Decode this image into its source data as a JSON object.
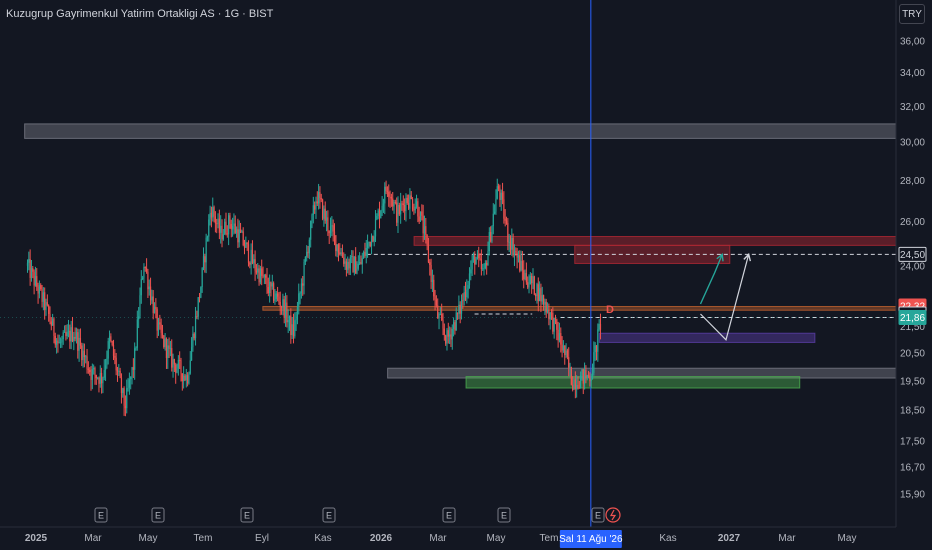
{
  "header": {
    "title": "Kuzugrup Gayrimenkul Yatirim Ortakligi AS · 1G · BIST",
    "currency": "TRY"
  },
  "colors": {
    "background": "#131722",
    "up_candle": "#26a69a",
    "down_candle": "#ef5350",
    "crosshair": "#2962ff",
    "axis_text": "#b2b5be"
  },
  "chart_data": {
    "type": "candlestick",
    "title": "Kuzugrup Gayrimenkul Yatirim Ortakligi AS · 1G · BIST",
    "y_scale": "log",
    "ylim": [
      15.2,
      37.0
    ],
    "y_ticks": [
      "36,00",
      "34,00",
      "32,00",
      "30,00",
      "28,00",
      "26,00",
      "24,00",
      "21,50",
      "20,50",
      "19,50",
      "18,50",
      "17,50",
      "16,70",
      "15,90"
    ],
    "x_ticks": [
      "2025",
      "Mar",
      "May",
      "Tem",
      "Eyl",
      "Kas",
      "2026",
      "Mar",
      "May",
      "Tem",
      "Kas",
      "2027",
      "Mar",
      "May"
    ],
    "price_labels": [
      {
        "text": "24,50",
        "value": 24.5,
        "style": "outline"
      },
      {
        "text": "22,32",
        "value": 22.32,
        "style": "red"
      },
      {
        "text": "22,00",
        "value": 22.0,
        "style": "outline"
      },
      {
        "text": "21,86",
        "value": 21.86,
        "style": "green"
      }
    ],
    "crosshair_date_label": "Sal 11 Ağu '26",
    "event_markers": [
      "E",
      "E",
      "E",
      "E",
      "E",
      "E",
      "E"
    ],
    "price_path": [
      [
        "2024-12-23",
        24.0
      ],
      [
        "2025-01-10",
        22.4
      ],
      [
        "2025-01-25",
        20.8
      ],
      [
        "2025-02-10",
        21.3
      ],
      [
        "2025-02-28",
        19.8
      ],
      [
        "2025-03-12",
        19.6
      ],
      [
        "2025-03-20",
        21.0
      ],
      [
        "2025-04-05",
        18.6
      ],
      [
        "2025-04-15",
        20.2
      ],
      [
        "2025-04-25",
        24.2
      ],
      [
        "2025-05-10",
        21.4
      ],
      [
        "2025-05-25",
        20.2
      ],
      [
        "2025-06-10",
        19.6
      ],
      [
        "2025-06-25",
        23.3
      ],
      [
        "2025-07-05",
        26.7
      ],
      [
        "2025-07-15",
        25.4
      ],
      [
        "2025-07-25",
        26.0
      ],
      [
        "2025-08-05",
        25.3
      ],
      [
        "2025-08-20",
        24.0
      ],
      [
        "2025-09-05",
        23.0
      ],
      [
        "2025-09-20",
        22.3
      ],
      [
        "2025-09-30",
        21.2
      ],
      [
        "2025-10-10",
        23.4
      ],
      [
        "2025-10-25",
        27.3
      ],
      [
        "2025-11-05",
        25.9
      ],
      [
        "2025-11-15",
        25.0
      ],
      [
        "2025-11-25",
        24.1
      ],
      [
        "2025-12-10",
        24.0
      ],
      [
        "2025-12-25",
        25.7
      ],
      [
        "2026-01-08",
        27.8
      ],
      [
        "2026-01-18",
        26.3
      ],
      [
        "2026-01-28",
        27.1
      ],
      [
        "2026-02-08",
        26.8
      ],
      [
        "2026-02-15",
        25.6
      ],
      [
        "2026-02-20",
        24.4
      ],
      [
        "2026-03-01",
        22.0
      ],
      [
        "2026-03-12",
        21.0
      ],
      [
        "2026-03-25",
        22.1
      ],
      [
        "2026-04-10",
        24.4
      ],
      [
        "2026-04-20",
        23.6
      ],
      [
        "2026-05-05",
        27.7
      ],
      [
        "2026-05-15",
        25.4
      ],
      [
        "2026-05-22",
        24.7
      ],
      [
        "2026-06-01",
        23.6
      ],
      [
        "2026-06-15",
        23.0
      ],
      [
        "2026-06-25",
        22.3
      ],
      [
        "2026-07-05",
        21.4
      ],
      [
        "2026-07-15",
        20.4
      ],
      [
        "2026-07-22",
        19.5
      ],
      [
        "2026-08-01",
        19.6
      ],
      [
        "2026-08-11",
        19.7
      ],
      [
        "2026-08-18",
        21.0
      ],
      [
        "2026-08-22",
        21.8
      ]
    ],
    "zones": [
      {
        "from": "2024-12-20",
        "to": "2027-07-10",
        "low": 30.2,
        "high": 31.0,
        "color": "#787b86"
      },
      {
        "from": "2026-02-05",
        "to": "2027-07-10",
        "low": 24.9,
        "high": 25.3,
        "color": "#b22833"
      },
      {
        "from": "2026-07-25",
        "to": "2027-01-05",
        "low": 24.1,
        "high": 24.9,
        "color": "#b22833"
      },
      {
        "from": "2025-08-29",
        "to": "2027-07-10",
        "low": 22.15,
        "high": 22.3,
        "color": "#c0622e"
      },
      {
        "from": "2026-08-20",
        "to": "2027-04-05",
        "low": 20.9,
        "high": 21.25,
        "color": "#5b3fa8"
      },
      {
        "from": "2026-01-08",
        "to": "2027-07-10",
        "low": 19.6,
        "high": 19.95,
        "color": "#787b86"
      },
      {
        "from": "2026-04-01",
        "to": "2027-03-20",
        "low": 19.25,
        "high": 19.65,
        "color": "#4caf50"
      }
    ],
    "horizontal_lines": [
      {
        "value": 24.5,
        "from": "2025-12-17"
      },
      {
        "value": 22.0,
        "from": "2026-04-10",
        "to": "2026-06-10"
      },
      {
        "value": 21.86,
        "from": "2026-07-10"
      }
    ],
    "projection_green": [
      [
        "2026-12-05",
        22.4
      ],
      [
        "2026-12-20",
        23.7
      ],
      [
        "2026-12-28",
        24.5
      ]
    ],
    "projection_white": [
      [
        "2026-12-05",
        22.0
      ],
      [
        "2027-01-01",
        21.0
      ],
      [
        "2027-01-25",
        24.5
      ]
    ],
    "drawing_label": "D"
  }
}
